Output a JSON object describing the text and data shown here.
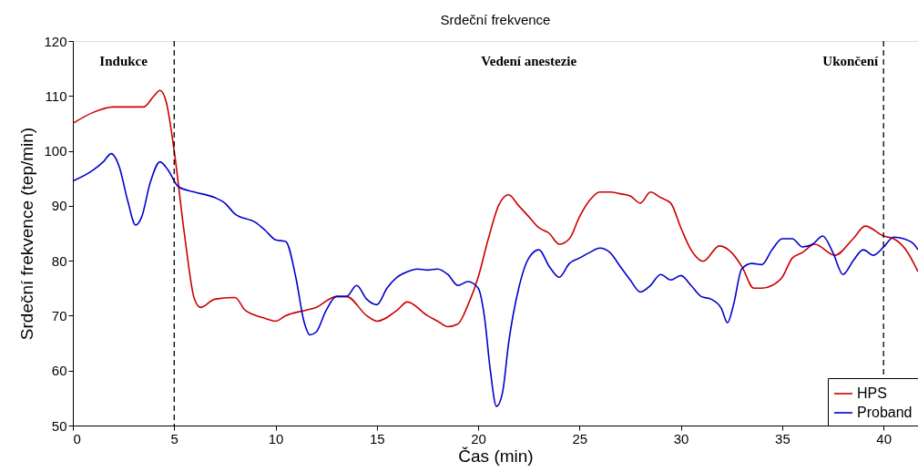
{
  "chart_data": {
    "type": "line",
    "title": "Srdeční frekvence",
    "xlabel": "Čas (min)",
    "ylabel": "Srdeční frekvence (tep/min)",
    "xlim": [
      0,
      41.7
    ],
    "ylim": [
      50,
      120
    ],
    "xticks": [
      0,
      5,
      10,
      15,
      20,
      25,
      30,
      35,
      40
    ],
    "yticks": [
      50,
      60,
      70,
      80,
      90,
      100,
      110,
      120
    ],
    "grid": false,
    "legend": "bottom right",
    "marker": "none",
    "line_style": "solid",
    "ref_lines": [
      {
        "axis": "x",
        "value": 5,
        "color": "#000000",
        "line_style": "dashed"
      },
      {
        "axis": "x",
        "value": 40,
        "color": "#000000",
        "line_style": "dashed"
      }
    ],
    "annotations": [
      "Indukce",
      "Vedení anestezie",
      "Ukončení"
    ],
    "series": [
      {
        "name": "HPS",
        "color": "#cc0000",
        "x": [
          0,
          1,
          2,
          3.5,
          4,
          4.3,
          4.6,
          5,
          5.5,
          6,
          6.3,
          7,
          8,
          8.5,
          9.5,
          10,
          10.5,
          11.5,
          12,
          13,
          13.5,
          14.5,
          15,
          16,
          16.5,
          17.5,
          18,
          18.5,
          19,
          19.5,
          20,
          20.5,
          21,
          21.5,
          22,
          22.5,
          23,
          23.5,
          24,
          24.5,
          25,
          25.5,
          26,
          26.5,
          27,
          27.5,
          28,
          28.5,
          29,
          29.5,
          30,
          30.5,
          31.1,
          31.9,
          32.5,
          33,
          33.6,
          34,
          34.5,
          35,
          35.5,
          36,
          36.6,
          37.6,
          38.5,
          39.1,
          40,
          40.5,
          41.1,
          41.7
        ],
        "values": [
          105,
          107,
          108,
          108,
          110,
          111,
          109,
          100,
          85,
          73,
          71.5,
          73,
          73.3,
          71,
          69.5,
          69,
          70,
          71,
          71.5,
          73.5,
          73.5,
          70,
          69,
          71,
          72.5,
          70,
          69,
          68,
          68.5,
          72,
          77,
          84,
          90,
          92,
          90,
          88,
          86,
          85,
          83,
          84,
          88,
          91,
          92.5,
          92.5,
          92.2,
          91.8,
          90.5,
          92.5,
          91.5,
          90.5,
          86,
          82,
          79.9,
          82.7,
          81.5,
          79,
          75,
          75,
          75.5,
          77,
          80.5,
          81.5,
          83,
          81,
          84,
          86.3,
          84.5,
          84,
          82,
          78
        ]
      },
      {
        "name": "Proband",
        "color": "#0000cc",
        "x": [
          0,
          1,
          1.5,
          1.9,
          2.3,
          2.7,
          3.1,
          3.4,
          3.8,
          4.3,
          4.7,
          5.2,
          6,
          7,
          7.5,
          8,
          9,
          9.5,
          10,
          10.5,
          11,
          11.4,
          11.7,
          12,
          12.5,
          13,
          13.5,
          14,
          14.5,
          15,
          15.5,
          16,
          16.5,
          17,
          17.5,
          18,
          18.5,
          19,
          19.5,
          20,
          20.3,
          20.6,
          20.9,
          21.2,
          21.5,
          22,
          22.5,
          23,
          23.5,
          24,
          24.5,
          25,
          25.5,
          26,
          26.5,
          27,
          27.5,
          28,
          28.5,
          29,
          29.5,
          30,
          30.5,
          31,
          31.5,
          32,
          32.3,
          32.6,
          33,
          33.5,
          34,
          34.5,
          35,
          35.5,
          36,
          36.5,
          37,
          37.5,
          38,
          38.5,
          39,
          39.5,
          40,
          40.5,
          41,
          41.5,
          41.7
        ],
        "values": [
          94.5,
          96.5,
          98,
          99.5,
          97,
          91,
          86.5,
          88,
          94,
          98,
          96.5,
          93.5,
          92.5,
          91.5,
          90.5,
          88.5,
          87,
          85.5,
          83.8,
          83.5,
          77,
          69,
          66.5,
          67,
          71,
          73.5,
          73.5,
          75.5,
          73,
          72,
          75,
          77,
          78,
          78.5,
          78.3,
          78.5,
          77.5,
          75.5,
          76.2,
          75,
          70,
          60,
          53.5,
          56,
          65,
          75,
          80.5,
          82,
          79,
          77,
          79.5,
          80.5,
          81.5,
          82.3,
          81.5,
          79,
          76.5,
          74.3,
          75.5,
          77.5,
          76.5,
          77.3,
          75.5,
          73.5,
          73,
          71.3,
          68.7,
          72,
          78.5,
          79.5,
          79.3,
          82,
          84,
          84,
          82.5,
          83,
          84.5,
          81.5,
          77.5,
          80,
          82,
          81,
          82.5,
          84.3,
          84,
          83,
          82
        ]
      }
    ]
  }
}
